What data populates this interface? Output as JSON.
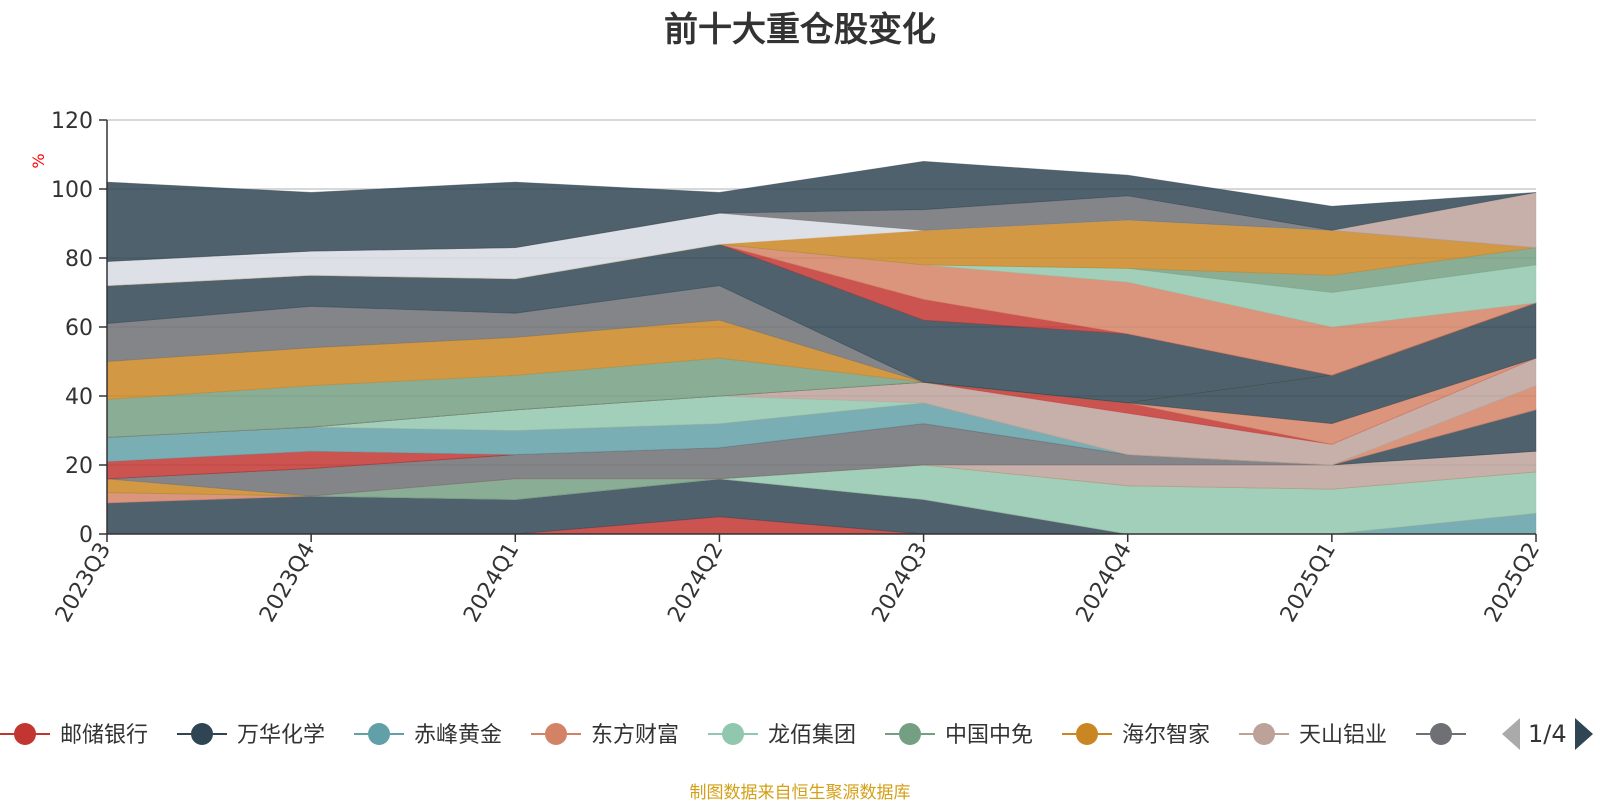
{
  "title": "前十大重仓股变化",
  "source_note": "制图数据来自恒生聚源数据库",
  "legend_page": "1/4",
  "chart_data": {
    "type": "area",
    "stacked": true,
    "categories": [
      "2023Q3",
      "2023Q4",
      "2024Q1",
      "2024Q2",
      "2024Q3",
      "2024Q4",
      "2025Q1",
      "2025Q2"
    ],
    "ylabel": "%",
    "ylim": [
      0,
      120
    ],
    "yticks": [
      0,
      20,
      40,
      60,
      80,
      100,
      120
    ],
    "grid": true,
    "legend_position": "bottom",
    "series": [
      {
        "name": "邮储银行",
        "color": "#c23531",
        "values": [
          0,
          0,
          0,
          5,
          0,
          0,
          0,
          0
        ]
      },
      {
        "name": "万华化学",
        "color": "#2f4554",
        "values": [
          9,
          11,
          10,
          11,
          10,
          0,
          0,
          0
        ]
      },
      {
        "name": "赤峰黄金",
        "color": "#61a0a8",
        "values": [
          0,
          0,
          0,
          0,
          0,
          0,
          0,
          6
        ]
      },
      {
        "name": "东方财富",
        "color": "#d48265",
        "values": [
          3,
          0,
          0,
          0,
          0,
          0,
          0,
          0
        ]
      },
      {
        "name": "龙佰集团",
        "color": "#91c7ae",
        "values": [
          0,
          0,
          0,
          0,
          10,
          14,
          13,
          12
        ]
      },
      {
        "name": "中国中免",
        "color": "#749f83",
        "values": [
          0,
          0,
          6,
          0,
          0,
          0,
          0,
          0
        ]
      },
      {
        "name": "海尔智家",
        "color": "#ca8622",
        "values": [
          4,
          0,
          0,
          0,
          0,
          0,
          0,
          0
        ]
      },
      {
        "name": "天山铝业",
        "color": "#bda29a",
        "values": [
          0,
          0,
          0,
          0,
          0,
          6,
          7,
          6
        ]
      },
      {
        "color": "#6e7074",
        "values": [
          0,
          8,
          7,
          9,
          12,
          3,
          0,
          0
        ]
      },
      {
        "color": "#2f4554",
        "values": [
          0,
          0,
          0,
          0,
          0,
          0,
          0,
          12
        ]
      },
      {
        "color": "#c23531",
        "values": [
          5,
          5,
          0,
          0,
          0,
          0,
          0,
          0
        ]
      },
      {
        "color": "#61a0a8",
        "values": [
          7,
          7,
          7,
          7,
          6,
          0,
          0,
          0
        ]
      },
      {
        "color": "#d48265",
        "values": [
          0,
          0,
          0,
          0,
          0,
          0,
          0,
          7
        ]
      },
      {
        "color": "#91c7ae",
        "values": [
          0,
          0,
          6,
          8,
          0,
          0,
          0,
          0
        ]
      },
      {
        "color": "#bda29a",
        "values": [
          0,
          0,
          0,
          0,
          6,
          12,
          6,
          8
        ]
      },
      {
        "color": "#c23531",
        "values": [
          0,
          0,
          0,
          0,
          0,
          3,
          0,
          0
        ]
      },
      {
        "color": "#d48265",
        "values": [
          0,
          0,
          0,
          0,
          0,
          0,
          6,
          0
        ]
      },
      {
        "color": "#2f4554",
        "values": [
          0,
          0,
          0,
          0,
          0,
          0,
          14,
          16
        ]
      },
      {
        "color": "#749f83",
        "values": [
          11,
          12,
          10,
          11,
          0,
          0,
          0,
          0
        ]
      },
      {
        "color": "#ca8622",
        "values": [
          11,
          11,
          11,
          11,
          0,
          0,
          0,
          0
        ]
      },
      {
        "color": "#6e7074",
        "values": [
          11,
          12,
          7,
          10,
          0,
          0,
          0,
          0
        ]
      },
      {
        "color": "#2f4554",
        "values": [
          11,
          9,
          10,
          12,
          18,
          20,
          0,
          0
        ]
      },
      {
        "color": "#c23531",
        "values": [
          0,
          0,
          0,
          0,
          6,
          0,
          0,
          0
        ]
      },
      {
        "color": "#d48265",
        "values": [
          0,
          0,
          0,
          0,
          10,
          15,
          14,
          0
        ]
      },
      {
        "color": "#91c7ae",
        "values": [
          0,
          0,
          0,
          0,
          0,
          4,
          10,
          11
        ]
      },
      {
        "color": "#749f83",
        "values": [
          0,
          0,
          0,
          0,
          0,
          0,
          5,
          5
        ]
      },
      {
        "color": "#ca8622",
        "values": [
          0,
          0,
          0,
          0,
          10,
          14,
          13,
          0
        ]
      },
      {
        "color": "#d7dce3",
        "values": [
          7,
          7,
          9,
          9,
          0,
          0,
          0,
          0
        ]
      },
      {
        "color": "#6e7074",
        "values": [
          0,
          0,
          0,
          0,
          6,
          7,
          0,
          0
        ]
      },
      {
        "color": "#bda29a",
        "values": [
          0,
          0,
          0,
          0,
          0,
          0,
          0,
          16
        ]
      },
      {
        "color": "#2f4554",
        "values": [
          23,
          17,
          19,
          6,
          14,
          6,
          7,
          0
        ]
      }
    ]
  }
}
